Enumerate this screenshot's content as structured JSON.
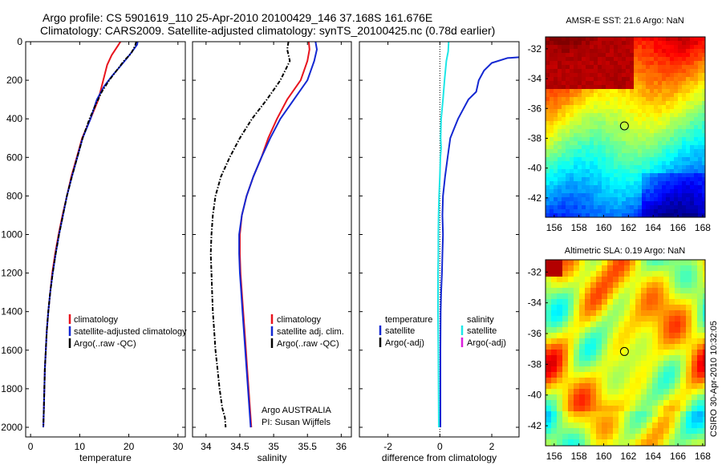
{
  "header": {
    "line1": "Argo profile: CS 5901619_110 25-Apr-2010 20100429_146 37.168S 161.676E",
    "line2": "Climatology: CARS2009. Satellite-adjusted climatology: synTS_20100425.nc (0.78d earlier)"
  },
  "side_stamp": "CSIRO 30-Apr-2010 10:32:05",
  "colors": {
    "climatology": "#e8141e",
    "satellite": "#1428d2",
    "argo": "#000000",
    "salinity_satellite": "#1ee6e6",
    "salinity_argo": "#dc1edc"
  },
  "chart_data": [
    {
      "type": "line",
      "name": "temperature-profile",
      "xlabel": "temperature",
      "ylabel": "",
      "xlim": [
        -1,
        31.5
      ],
      "ylim": [
        2050,
        0
      ],
      "xticks": [
        0,
        10,
        20,
        30
      ],
      "yticks": [
        0,
        200,
        400,
        600,
        800,
        1000,
        1200,
        1400,
        1600,
        1800,
        2000
      ],
      "legend": [
        "climatology",
        "satellite-adjusted climatology",
        "Argo(..raw -QC)"
      ],
      "legend_position": "lower-center",
      "series": [
        {
          "name": "climatology",
          "color": "climatology",
          "points": [
            [
              18.3,
              0
            ],
            [
              17.8,
              20
            ],
            [
              16.5,
              70
            ],
            [
              15.6,
              120
            ],
            [
              14.8,
              200
            ],
            [
              13.8,
              300
            ],
            [
              12.2,
              400
            ],
            [
              10.5,
              500
            ],
            [
              9.4,
              600
            ],
            [
              8.3,
              700
            ],
            [
              7.4,
              800
            ],
            [
              6.5,
              900
            ],
            [
              5.7,
              1000
            ],
            [
              5.0,
              1100
            ],
            [
              4.4,
              1200
            ],
            [
              4.0,
              1300
            ],
            [
              3.6,
              1400
            ],
            [
              3.3,
              1500
            ],
            [
              3.1,
              1600
            ],
            [
              2.9,
              1700
            ],
            [
              2.8,
              1800
            ],
            [
              2.7,
              1900
            ],
            [
              2.6,
              2000
            ]
          ]
        },
        {
          "name": "satellite-adjusted climatology",
          "color": "satellite",
          "points": [
            [
              21.8,
              0
            ],
            [
              21.7,
              15
            ],
            [
              21.0,
              40
            ],
            [
              19.8,
              80
            ],
            [
              18.5,
              120
            ],
            [
              16.5,
              180
            ],
            [
              15.0,
              230
            ],
            [
              13.5,
              300
            ],
            [
              12.2,
              400
            ],
            [
              10.6,
              500
            ],
            [
              9.5,
              600
            ],
            [
              8.4,
              700
            ],
            [
              7.4,
              800
            ],
            [
              6.6,
              900
            ],
            [
              5.8,
              1000
            ],
            [
              5.1,
              1100
            ],
            [
              4.5,
              1200
            ],
            [
              4.0,
              1300
            ],
            [
              3.6,
              1400
            ],
            [
              3.3,
              1500
            ],
            [
              3.1,
              1600
            ],
            [
              2.9,
              1700
            ],
            [
              2.8,
              1800
            ],
            [
              2.7,
              1900
            ],
            [
              2.6,
              2000
            ]
          ]
        },
        {
          "name": "Argo(..raw -QC)",
          "color": "argo",
          "style": "dashdot",
          "points": [
            [
              21.5,
              0
            ],
            [
              21.3,
              20
            ],
            [
              20.5,
              60
            ],
            [
              19.0,
              100
            ],
            [
              17.8,
              140
            ],
            [
              16.0,
              200
            ],
            [
              14.5,
              260
            ],
            [
              13.2,
              330
            ],
            [
              12.0,
              400
            ],
            [
              10.6,
              500
            ],
            [
              9.5,
              600
            ],
            [
              8.4,
              700
            ],
            [
              7.4,
              800
            ],
            [
              6.6,
              900
            ],
            [
              5.8,
              1000
            ],
            [
              5.1,
              1100
            ],
            [
              4.5,
              1200
            ],
            [
              4.0,
              1300
            ],
            [
              3.6,
              1400
            ],
            [
              3.3,
              1500
            ],
            [
              3.1,
              1600
            ],
            [
              2.9,
              1700
            ],
            [
              2.8,
              1800
            ],
            [
              2.7,
              1900
            ],
            [
              2.6,
              2000
            ]
          ]
        }
      ]
    },
    {
      "type": "line",
      "name": "salinity-profile",
      "xlabel": "salinity",
      "xlim": [
        33.8,
        36.15
      ],
      "ylim": [
        2050,
        0
      ],
      "xticks": [
        34,
        34.5,
        35,
        35.5,
        36
      ],
      "legend": [
        "climatology",
        "satellite adj. clim.",
        "Argo(..raw -QC)"
      ],
      "legend_position": "lower-right",
      "annotation": [
        "Argo AUSTRALIA",
        "PI: Susan Wijffels"
      ],
      "series": [
        {
          "name": "climatology",
          "color": "climatology",
          "points": [
            [
              35.52,
              0
            ],
            [
              35.53,
              40
            ],
            [
              35.5,
              100
            ],
            [
              35.4,
              200
            ],
            [
              35.2,
              300
            ],
            [
              35.05,
              400
            ],
            [
              34.92,
              500
            ],
            [
              34.82,
              600
            ],
            [
              34.7,
              700
            ],
            [
              34.6,
              800
            ],
            [
              34.53,
              900
            ],
            [
              34.5,
              1000
            ],
            [
              34.5,
              1100
            ],
            [
              34.51,
              1200
            ],
            [
              34.53,
              1300
            ],
            [
              34.55,
              1400
            ],
            [
              34.57,
              1500
            ],
            [
              34.59,
              1600
            ],
            [
              34.61,
              1700
            ],
            [
              34.63,
              1800
            ],
            [
              34.65,
              1900
            ],
            [
              34.67,
              2000
            ]
          ]
        },
        {
          "name": "satellite adj. clim.",
          "color": "satellite",
          "points": [
            [
              35.62,
              0
            ],
            [
              35.64,
              40
            ],
            [
              35.6,
              100
            ],
            [
              35.5,
              200
            ],
            [
              35.3,
              300
            ],
            [
              35.1,
              400
            ],
            [
              34.95,
              500
            ],
            [
              34.82,
              600
            ],
            [
              34.7,
              700
            ],
            [
              34.6,
              800
            ],
            [
              34.53,
              900
            ],
            [
              34.49,
              1000
            ],
            [
              34.49,
              1100
            ],
            [
              34.5,
              1200
            ],
            [
              34.52,
              1300
            ],
            [
              34.54,
              1400
            ],
            [
              34.56,
              1500
            ],
            [
              34.58,
              1600
            ],
            [
              34.6,
              1700
            ],
            [
              34.62,
              1800
            ],
            [
              34.64,
              1900
            ],
            [
              34.66,
              2000
            ]
          ]
        },
        {
          "name": "Argo(..raw -QC)",
          "color": "argo",
          "style": "dashdot",
          "points": [
            [
              35.22,
              0
            ],
            [
              35.2,
              40
            ],
            [
              35.24,
              100
            ],
            [
              35.1,
              200
            ],
            [
              34.9,
              300
            ],
            [
              34.68,
              400
            ],
            [
              34.5,
              500
            ],
            [
              34.35,
              600
            ],
            [
              34.22,
              700
            ],
            [
              34.14,
              800
            ],
            [
              34.1,
              900
            ],
            [
              34.08,
              1000
            ],
            [
              34.07,
              1100
            ],
            [
              34.08,
              1200
            ],
            [
              34.09,
              1300
            ],
            [
              34.1,
              1400
            ],
            [
              34.12,
              1500
            ],
            [
              34.14,
              1600
            ],
            [
              34.17,
              1700
            ],
            [
              34.2,
              1800
            ],
            [
              34.24,
              1900
            ],
            [
              34.28,
              1950
            ],
            [
              34.29,
              2000
            ]
          ]
        }
      ]
    },
    {
      "type": "line",
      "name": "difference-profile",
      "xlabel": "difference from climatology",
      "xlim": [
        -3.1,
        3.05
      ],
      "ylim": [
        2050,
        0
      ],
      "xticks": [
        -2,
        0,
        2
      ],
      "legend_left_title": "temperature",
      "legend_left": [
        "satellite",
        "Argo(-adj)"
      ],
      "legend_right_title": "salinity",
      "legend_right": [
        "satellite",
        "Argo(-adj)"
      ],
      "series": [
        {
          "name": "temperature satellite",
          "color": "satellite",
          "points": [
            [
              3.1,
              80
            ],
            [
              2.6,
              85
            ],
            [
              2.0,
              110
            ],
            [
              1.7,
              150
            ],
            [
              1.5,
              200
            ],
            [
              1.4,
              260
            ],
            [
              1.1,
              300
            ],
            [
              0.9,
              350
            ],
            [
              0.7,
              400
            ],
            [
              0.55,
              450
            ],
            [
              0.4,
              500
            ],
            [
              0.3,
              600
            ],
            [
              0.2,
              700
            ],
            [
              0.12,
              800
            ],
            [
              0.1,
              900
            ],
            [
              0.12,
              1000
            ],
            [
              0.1,
              1100
            ],
            [
              0.08,
              1200
            ],
            [
              0.05,
              1300
            ],
            [
              0.03,
              1400
            ],
            [
              0.02,
              1600
            ],
            [
              0.02,
              1800
            ],
            [
              0.02,
              2000
            ]
          ]
        },
        {
          "name": "salinity satellite",
          "color": "salinity_satellite",
          "points": [
            [
              0.34,
              0
            ],
            [
              0.32,
              50
            ],
            [
              0.25,
              100
            ],
            [
              0.18,
              200
            ],
            [
              0.12,
              300
            ],
            [
              0.05,
              400
            ],
            [
              0.03,
              500
            ],
            [
              0.05,
              550
            ],
            [
              0.02,
              600
            ],
            [
              0.0,
              700
            ],
            [
              -0.03,
              800
            ],
            [
              -0.05,
              900
            ],
            [
              -0.06,
              1000
            ],
            [
              -0.06,
              1100
            ],
            [
              -0.07,
              1200
            ],
            [
              -0.07,
              1400
            ],
            [
              -0.06,
              1600
            ],
            [
              -0.05,
              1800
            ],
            [
              -0.04,
              2000
            ]
          ]
        }
      ]
    }
  ],
  "maps": [
    {
      "title": "AMSR-E SST: 21.6 Argo: NaN",
      "kind": "sst",
      "lon_ticks": [
        "156",
        "158",
        "160",
        "162",
        "164",
        "166",
        "168"
      ],
      "lat_ticks": [
        "-32",
        "-34",
        "-36",
        "-38",
        "-40",
        "-42"
      ],
      "marker": {
        "lon": 161.676,
        "lat": -37.168
      }
    },
    {
      "title": "Altimetric SLA: 0.19 Argo: NaN",
      "kind": "sla",
      "lon_ticks": [
        "156",
        "158",
        "160",
        "162",
        "164",
        "166",
        "168"
      ],
      "lat_ticks": [
        "-32",
        "-34",
        "-36",
        "-38",
        "-40",
        "-42"
      ],
      "marker": {
        "lon": 161.676,
        "lat": -37.168
      }
    }
  ]
}
